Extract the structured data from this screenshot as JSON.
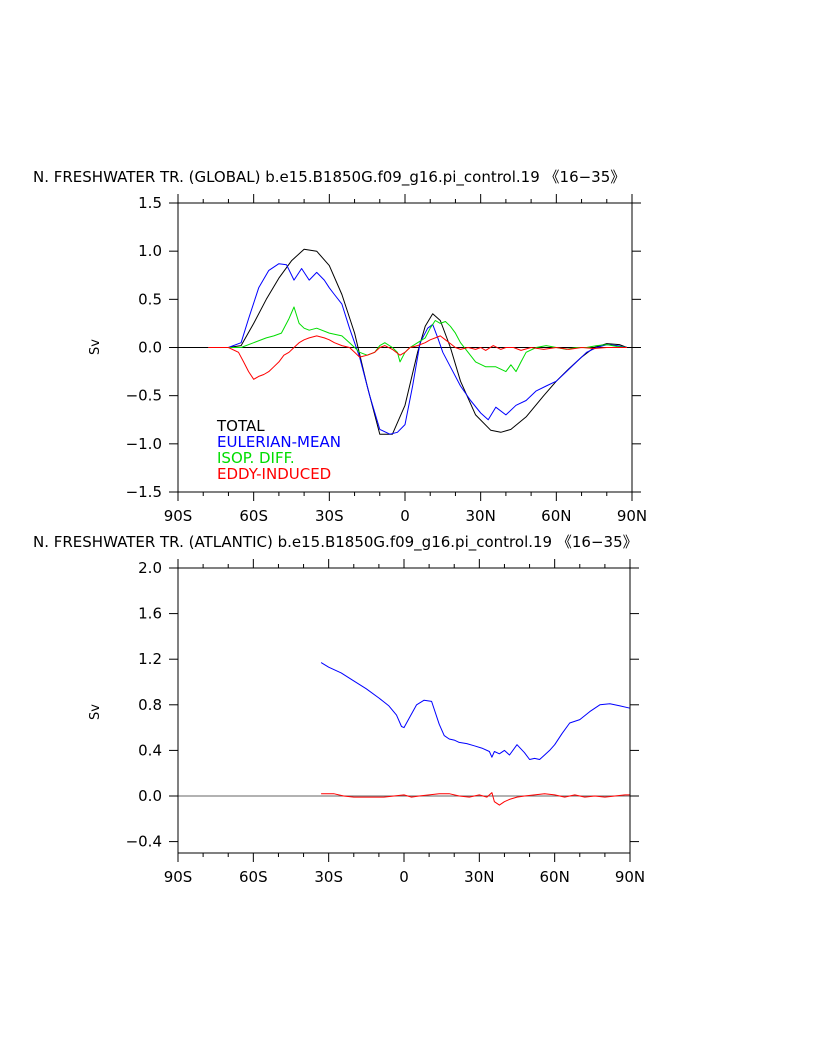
{
  "chart_data": [
    {
      "type": "line",
      "title": "N. FRESHWATER TR. (GLOBAL) b.e15.B1850G.f09_g16.pi_control.19 《16−35》",
      "ylabel": "Sv",
      "xlabel": "",
      "xlim": [
        -90,
        90
      ],
      "ylim": [
        -1.5,
        1.5
      ],
      "x_ticks": [
        -90,
        -60,
        -30,
        0,
        30,
        60,
        90
      ],
      "x_tick_labels": [
        "90S",
        "60S",
        "30S",
        "0",
        "30N",
        "60N",
        "90N"
      ],
      "y_ticks": [
        -1.5,
        -1.0,
        -0.5,
        0.0,
        0.5,
        1.0,
        1.5
      ],
      "y_tick_labels": [
        "−1.5",
        "−1.0",
        "−0.5",
        "0.0",
        "0.5",
        "1.0",
        "1.5"
      ],
      "legend_placement": "lower-left",
      "series": [
        {
          "name": "TOTAL",
          "color": "#000000",
          "x": [
            -78,
            -70,
            -65,
            -60,
            -55,
            -50,
            -45,
            -40,
            -35,
            -30,
            -25,
            -20,
            -15,
            -10,
            -5,
            0,
            5,
            8,
            11,
            14,
            18,
            22,
            28,
            34,
            38,
            42,
            48,
            55,
            60,
            65,
            70,
            75,
            80,
            85,
            88
          ],
          "y": [
            0.0,
            0.0,
            0.02,
            0.25,
            0.5,
            0.72,
            0.9,
            1.02,
            1.0,
            0.85,
            0.55,
            0.15,
            -0.4,
            -0.9,
            -0.9,
            -0.6,
            -0.05,
            0.22,
            0.35,
            0.28,
            0.0,
            -0.35,
            -0.7,
            -0.86,
            -0.88,
            -0.85,
            -0.72,
            -0.5,
            -0.35,
            -0.22,
            -0.1,
            0.0,
            0.04,
            0.03,
            0.0
          ]
        },
        {
          "name": "EULERIAN-MEAN",
          "color": "#0000ff",
          "x": [
            -78,
            -70,
            -65,
            -62,
            -58,
            -54,
            -50,
            -47,
            -44,
            -41,
            -38,
            -35,
            -32,
            -30,
            -28,
            -25,
            -22,
            -18,
            -14,
            -10,
            -6,
            -3,
            0,
            3,
            6,
            9,
            11,
            13,
            15,
            18,
            22,
            26,
            30,
            33,
            36,
            40,
            44,
            48,
            52,
            56,
            60,
            64,
            68,
            72,
            76,
            80,
            84,
            88
          ],
          "y": [
            0.0,
            0.0,
            0.05,
            0.3,
            0.62,
            0.8,
            0.87,
            0.86,
            0.7,
            0.82,
            0.7,
            0.78,
            0.7,
            0.62,
            0.55,
            0.45,
            0.2,
            -0.1,
            -0.5,
            -0.85,
            -0.9,
            -0.88,
            -0.8,
            -0.4,
            0.05,
            0.2,
            0.24,
            0.1,
            -0.05,
            -0.2,
            -0.4,
            -0.55,
            -0.68,
            -0.75,
            -0.62,
            -0.7,
            -0.6,
            -0.55,
            -0.45,
            -0.4,
            -0.35,
            -0.25,
            -0.15,
            -0.05,
            0.0,
            0.03,
            0.02,
            0.0
          ]
        },
        {
          "name": "ISOP. DIFF.",
          "color": "#00dd00",
          "x": [
            -78,
            -70,
            -65,
            -60,
            -55,
            -52,
            -49,
            -46,
            -44,
            -42,
            -40,
            -38,
            -35,
            -30,
            -25,
            -22,
            -20,
            -18,
            -15,
            -12,
            -10,
            -8,
            -5,
            -3,
            -2,
            0,
            2,
            5,
            8,
            10,
            12,
            14,
            16,
            18,
            20,
            22,
            25,
            28,
            32,
            36,
            40,
            42,
            44,
            46,
            48,
            52,
            56,
            60,
            64,
            68,
            72,
            76,
            80,
            84,
            88
          ],
          "y": [
            0.0,
            0.0,
            0.0,
            0.05,
            0.1,
            0.12,
            0.15,
            0.3,
            0.42,
            0.25,
            0.2,
            0.18,
            0.2,
            0.15,
            0.12,
            0.05,
            0.0,
            -0.05,
            -0.08,
            -0.05,
            0.02,
            0.05,
            0.0,
            -0.05,
            -0.15,
            -0.05,
            0.0,
            0.05,
            0.1,
            0.2,
            0.28,
            0.25,
            0.27,
            0.22,
            0.15,
            0.05,
            -0.05,
            -0.15,
            -0.2,
            -0.2,
            -0.25,
            -0.18,
            -0.25,
            -0.15,
            -0.05,
            0.0,
            0.02,
            0.0,
            -0.02,
            0.0,
            0.0,
            0.02,
            0.03,
            0.01,
            0.0
          ]
        },
        {
          "name": "EDDY-INDUCED",
          "color": "#ff0000",
          "x": [
            -78,
            -70,
            -66,
            -64,
            -62,
            -60,
            -58,
            -56,
            -54,
            -52,
            -50,
            -48,
            -46,
            -44,
            -42,
            -40,
            -38,
            -35,
            -32,
            -30,
            -28,
            -25,
            -22,
            -20,
            -18,
            -15,
            -12,
            -10,
            -8,
            -5,
            -2,
            0,
            2,
            5,
            8,
            10,
            12,
            14,
            16,
            18,
            20,
            22,
            25,
            28,
            30,
            32,
            35,
            38,
            40,
            43,
            46,
            50,
            55,
            60,
            65,
            70,
            75,
            80,
            85,
            88
          ],
          "y": [
            0.0,
            0.0,
            -0.05,
            -0.15,
            -0.25,
            -0.33,
            -0.3,
            -0.28,
            -0.25,
            -0.2,
            -0.15,
            -0.08,
            -0.05,
            0.0,
            0.05,
            0.08,
            0.1,
            0.12,
            0.1,
            0.08,
            0.05,
            0.02,
            0.0,
            -0.05,
            -0.1,
            -0.08,
            -0.05,
            0.0,
            0.02,
            -0.02,
            -0.08,
            -0.05,
            0.0,
            0.02,
            0.05,
            0.08,
            0.1,
            0.12,
            0.08,
            0.04,
            0.0,
            -0.02,
            0.0,
            -0.02,
            0.0,
            -0.03,
            0.02,
            -0.02,
            0.0,
            0.0,
            -0.03,
            0.0,
            -0.02,
            0.0,
            -0.02,
            0.0,
            -0.01,
            0.0,
            0.0,
            0.0
          ]
        }
      ]
    },
    {
      "type": "line",
      "title": "N. FRESHWATER TR. (ATLANTIC) b.e15.B1850G.f09_g16.pi_control.19 《16−35》",
      "ylabel": "Sv",
      "xlabel": "",
      "xlim": [
        -90,
        90
      ],
      "ylim": [
        -0.5,
        2.0
      ],
      "x_ticks": [
        -90,
        -60,
        -30,
        0,
        30,
        60,
        90
      ],
      "x_tick_labels": [
        "90S",
        "60S",
        "30S",
        "0",
        "30N",
        "60N",
        "90N"
      ],
      "y_ticks": [
        -0.4,
        0.0,
        0.4,
        0.8,
        1.2,
        1.6,
        2.0
      ],
      "y_tick_labels": [
        "−0.4",
        "0.0",
        "0.4",
        "0.8",
        "1.2",
        "1.6",
        "2.0"
      ],
      "series": [
        {
          "name": "EULERIAN-MEAN",
          "color": "#0000ff",
          "x": [
            -33,
            -30,
            -25,
            -20,
            -15,
            -10,
            -6,
            -3,
            -1,
            0,
            2,
            5,
            8,
            11,
            14,
            16,
            18,
            20,
            22,
            25,
            28,
            31,
            34,
            35,
            36,
            38,
            40,
            42,
            45,
            48,
            50,
            52,
            54,
            56,
            58,
            60,
            63,
            66,
            70,
            74,
            78,
            82,
            86,
            90
          ],
          "y": [
            1.17,
            1.13,
            1.08,
            1.01,
            0.94,
            0.86,
            0.79,
            0.71,
            0.61,
            0.6,
            0.68,
            0.8,
            0.84,
            0.83,
            0.63,
            0.53,
            0.5,
            0.49,
            0.47,
            0.46,
            0.44,
            0.42,
            0.39,
            0.34,
            0.39,
            0.37,
            0.4,
            0.36,
            0.45,
            0.38,
            0.32,
            0.33,
            0.32,
            0.36,
            0.4,
            0.45,
            0.55,
            0.64,
            0.67,
            0.74,
            0.8,
            0.81,
            0.79,
            0.77
          ]
        },
        {
          "name": "EDDY-INDUCED",
          "color": "#ff0000",
          "x": [
            -33,
            -28,
            -24,
            -20,
            -16,
            -12,
            -8,
            -4,
            0,
            3,
            6,
            10,
            14,
            18,
            22,
            26,
            30,
            33,
            35,
            36,
            38,
            40,
            42,
            45,
            48,
            52,
            56,
            60,
            64,
            68,
            72,
            76,
            80,
            84,
            88,
            90
          ],
          "y": [
            0.02,
            0.02,
            0.0,
            -0.01,
            -0.01,
            -0.01,
            -0.01,
            0.0,
            0.01,
            -0.01,
            0.0,
            0.01,
            0.02,
            0.02,
            0.0,
            -0.01,
            0.01,
            -0.01,
            0.03,
            -0.05,
            -0.08,
            -0.05,
            -0.03,
            -0.01,
            0.0,
            0.01,
            0.02,
            0.01,
            -0.01,
            0.01,
            -0.01,
            0.0,
            -0.01,
            0.0,
            0.01,
            0.01
          ]
        }
      ]
    }
  ],
  "legend": {
    "items": [
      {
        "label": "TOTAL",
        "color": "#000000"
      },
      {
        "label": "EULERIAN-MEAN",
        "color": "#0000ff"
      },
      {
        "label": "ISOP. DIFF.",
        "color": "#00dd00"
      },
      {
        "label": "EDDY-INDUCED",
        "color": "#ff0000"
      }
    ]
  }
}
